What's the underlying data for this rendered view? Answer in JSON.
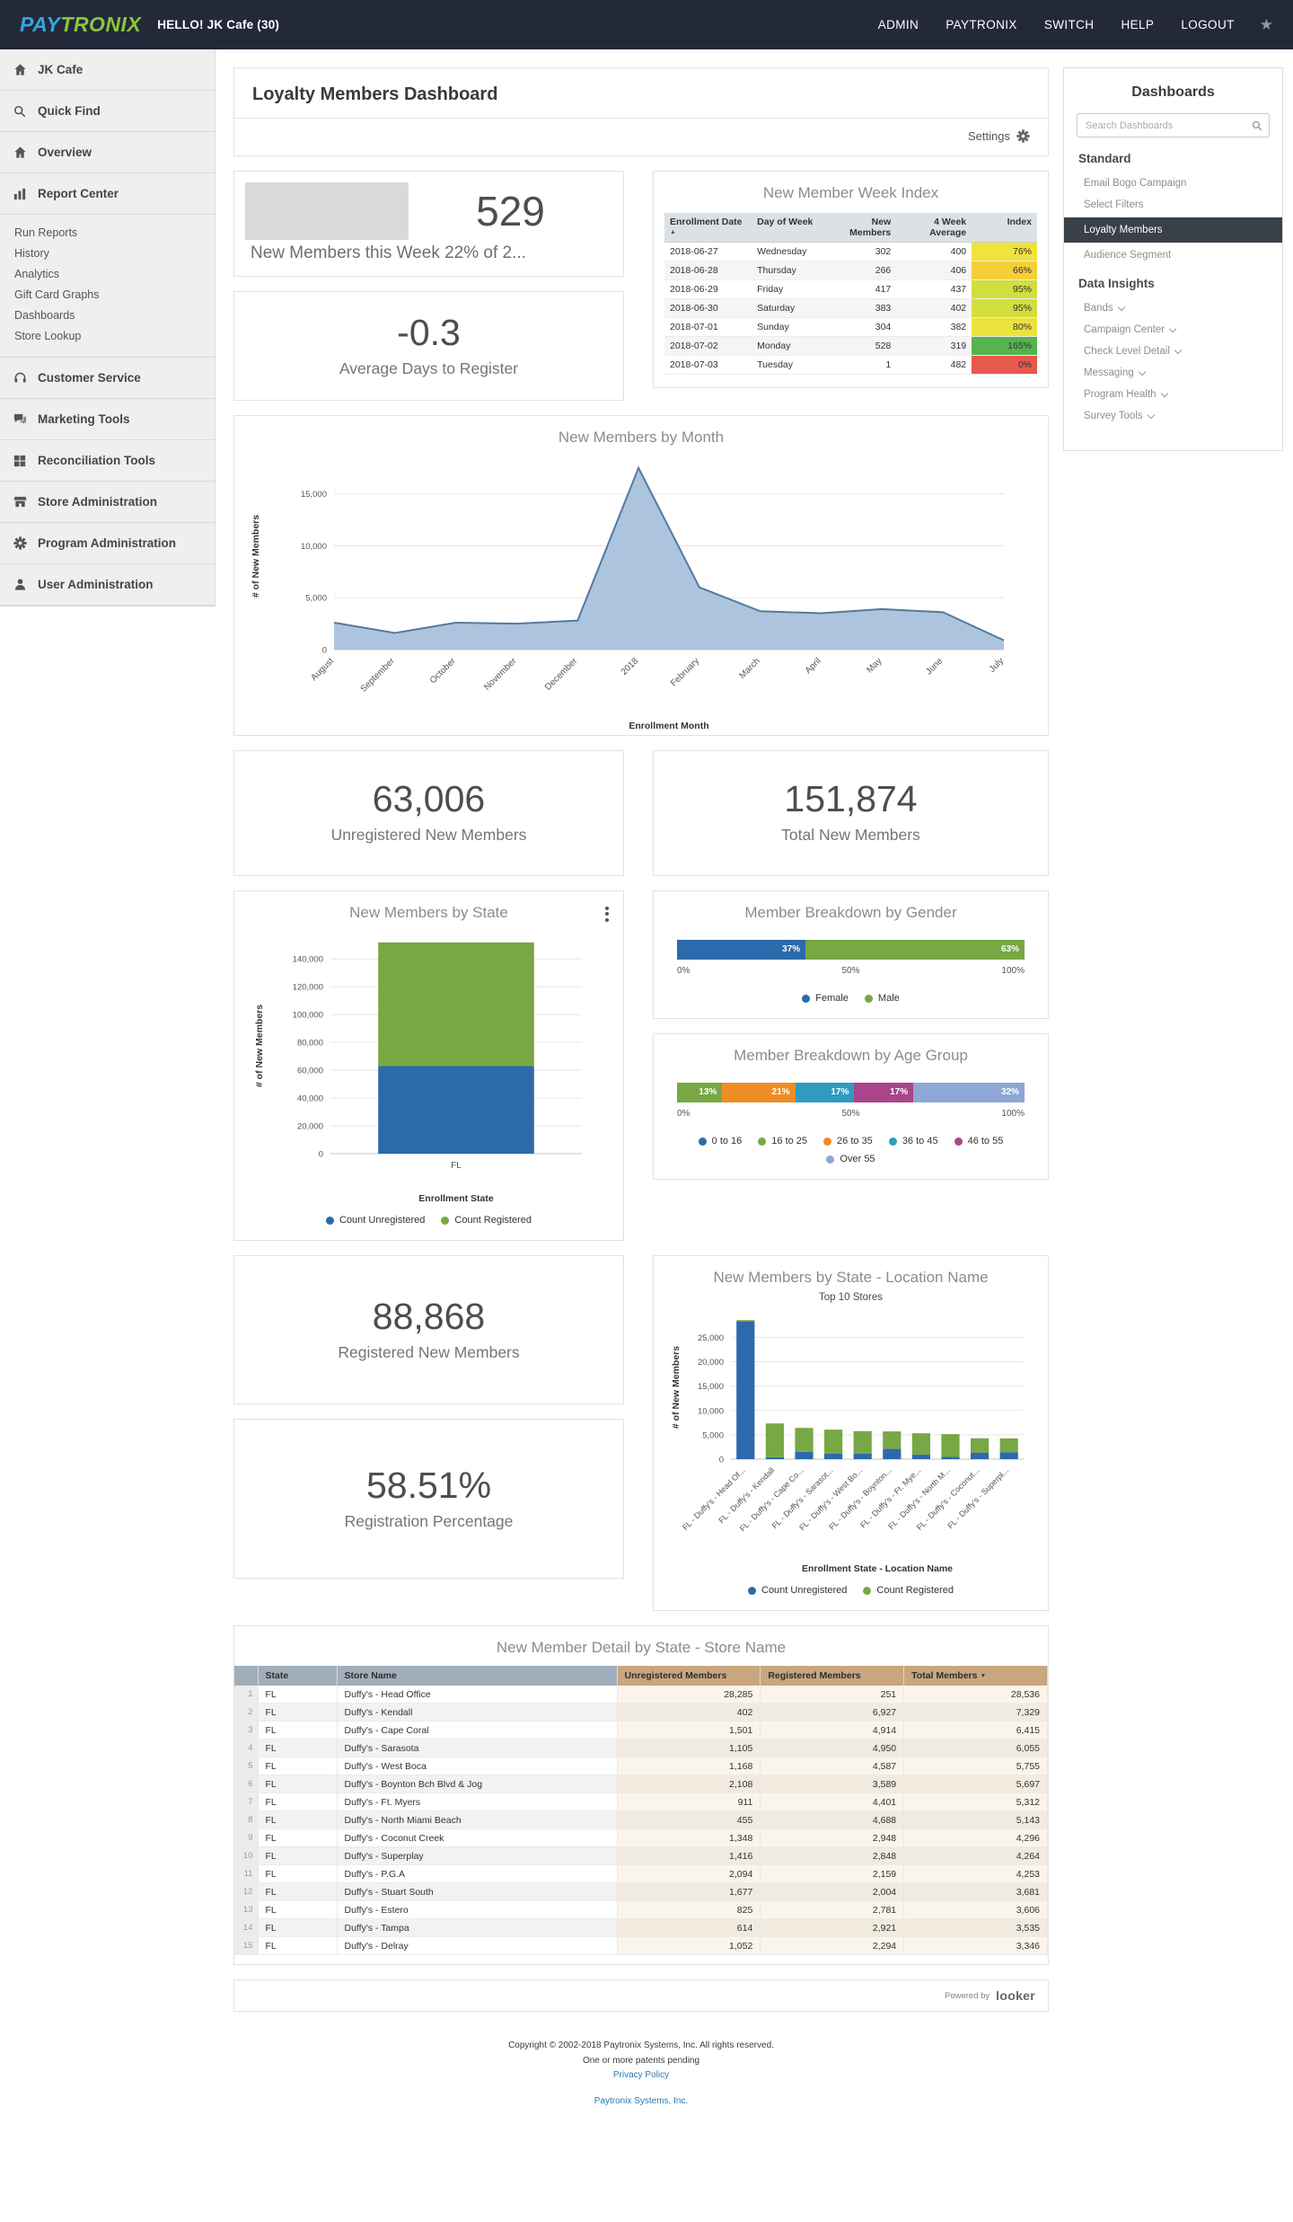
{
  "navbar": {
    "logo_pay": "PAY",
    "logo_tronix": "TRONIX",
    "greeting": "HELLO! JK Cafe (30)",
    "links": [
      "ADMIN",
      "PAYTRONIX",
      "SWITCH",
      "HELP",
      "LOGOUT"
    ]
  },
  "sidebar": {
    "items_top": [
      {
        "label": "JK Cafe",
        "icon": "home"
      },
      {
        "label": "Quick Find",
        "icon": "search"
      },
      {
        "label": "Overview",
        "icon": "home"
      },
      {
        "label": "Report Center",
        "icon": "bar-chart"
      }
    ],
    "report_center_children": [
      "Run Reports",
      "History",
      "Analytics",
      "Gift Card Graphs",
      "Dashboards",
      "Store Lookup"
    ],
    "items_bottom": [
      {
        "label": "Customer Service",
        "icon": "headset"
      },
      {
        "label": "Marketing Tools",
        "icon": "chat"
      },
      {
        "label": "Reconciliation Tools",
        "icon": "grid"
      },
      {
        "label": "Store Administration",
        "icon": "store"
      },
      {
        "label": "Program Administration",
        "icon": "gear"
      },
      {
        "label": "User Administration",
        "icon": "user"
      }
    ]
  },
  "page_header": {
    "title": "Loyalty Members Dashboard",
    "settings_label": "Settings"
  },
  "stats": {
    "new_members_week": {
      "value": "529",
      "label": "New Members this Week 22% of 2..."
    },
    "avg_days": {
      "value": "-0.3",
      "label": "Average Days to Register"
    },
    "unregistered": {
      "value": "63,006",
      "label": "Unregistered New Members"
    },
    "total": {
      "value": "151,874",
      "label": "Total New Members"
    },
    "registered": {
      "value": "88,868",
      "label": "Registered New Members"
    },
    "registration_pct": {
      "value": "58.51%",
      "label": "Registration Percentage"
    }
  },
  "week_index": {
    "title": "New Member Week Index",
    "columns": [
      "Enrollment Date",
      "Day of Week",
      "New Members",
      "4 Week Average",
      "Index"
    ],
    "rows": [
      {
        "date": "2018-06-27",
        "day": "Wednesday",
        "new_members": "302",
        "avg": "400",
        "index": "76%",
        "index_color": "#f1e33c"
      },
      {
        "date": "2018-06-28",
        "day": "Thursday",
        "new_members": "266",
        "avg": "406",
        "index": "66%",
        "index_color": "#f5ce38"
      },
      {
        "date": "2018-06-29",
        "day": "Friday",
        "new_members": "417",
        "avg": "437",
        "index": "95%",
        "index_color": "#d2de3e"
      },
      {
        "date": "2018-06-30",
        "day": "Saturday",
        "new_members": "383",
        "avg": "402",
        "index": "95%",
        "index_color": "#d2de3e"
      },
      {
        "date": "2018-07-01",
        "day": "Sunday",
        "new_members": "304",
        "avg": "382",
        "index": "80%",
        "index_color": "#ece23b"
      },
      {
        "date": "2018-07-02",
        "day": "Monday",
        "new_members": "528",
        "avg": "319",
        "index": "165%",
        "index_color": "#55b44e"
      },
      {
        "date": "2018-07-03",
        "day": "Tuesday",
        "new_members": "1",
        "avg": "482",
        "index": "0%",
        "index_color": "#e8584c"
      }
    ]
  },
  "detail_table": {
    "title": "New Member Detail by State - Store Name",
    "columns": [
      "State",
      "Store Name",
      "Unregistered Members",
      "Registered Members",
      "Total Members"
    ],
    "rows": [
      [
        "1",
        "FL",
        "Duffy's - Head Office",
        "28,285",
        "251",
        "28,536"
      ],
      [
        "2",
        "FL",
        "Duffy's - Kendall",
        "402",
        "6,927",
        "7,329"
      ],
      [
        "3",
        "FL",
        "Duffy's - Cape Coral",
        "1,501",
        "4,914",
        "6,415"
      ],
      [
        "4",
        "FL",
        "Duffy's - Sarasota",
        "1,105",
        "4,950",
        "6,055"
      ],
      [
        "5",
        "FL",
        "Duffy's - West Boca",
        "1,168",
        "4,587",
        "5,755"
      ],
      [
        "6",
        "FL",
        "Duffy's - Boynton Bch Blvd & Jog",
        "2,108",
        "3,589",
        "5,697"
      ],
      [
        "7",
        "FL",
        "Duffy's - Ft. Myers",
        "911",
        "4,401",
        "5,312"
      ],
      [
        "8",
        "FL",
        "Duffy's - North Miami Beach",
        "455",
        "4,688",
        "5,143"
      ],
      [
        "9",
        "FL",
        "Duffy's - Coconut Creek",
        "1,348",
        "2,948",
        "4,296"
      ],
      [
        "10",
        "FL",
        "Duffy's - Superplay",
        "1,416",
        "2,848",
        "4,264"
      ],
      [
        "11",
        "FL",
        "Duffy's - P.G.A",
        "2,094",
        "2,159",
        "4,253"
      ],
      [
        "12",
        "FL",
        "Duffy's - Stuart South",
        "1,677",
        "2,004",
        "3,681"
      ],
      [
        "13",
        "FL",
        "Duffy's - Estero",
        "825",
        "2,781",
        "3,606"
      ],
      [
        "14",
        "FL",
        "Duffy's - Tampa",
        "614",
        "2,921",
        "3,535"
      ],
      [
        "15",
        "FL",
        "Duffy's - Delray",
        "1,052",
        "2,294",
        "3,346"
      ]
    ]
  },
  "dashboards_panel": {
    "title": "Dashboards",
    "search_placeholder": "Search Dashboards",
    "standard_heading": "Standard",
    "standard_items": [
      "Email Bogo Campaign",
      "Select Filters",
      "Loyalty Members",
      "Audience Segment"
    ],
    "active_item": "Loyalty Members",
    "insights_heading": "Data Insights",
    "insights_items": [
      "Bands",
      "Campaign Center",
      "Check Level Detail",
      "Messaging",
      "Program Health",
      "Survey Tools"
    ]
  },
  "powered": {
    "prefix": "Powered by",
    "brand": "looker"
  },
  "footer": {
    "copyright": "Copyright © 2002-2018 Paytronix Systems, Inc. All rights reserved.",
    "patents": "One or more patents pending",
    "privacy_link": "Privacy Policy",
    "company_link": "Paytronix Systems, Inc."
  },
  "chart_data": [
    {
      "id": "members_by_month",
      "type": "area",
      "title": "New Members by Month",
      "xlabel": "Enrollment Month",
      "ylabel": "# of New Members",
      "x": [
        "August",
        "September",
        "October",
        "November",
        "December",
        "2018",
        "February",
        "March",
        "April",
        "May",
        "June",
        "July"
      ],
      "values": [
        2600,
        1600,
        2600,
        2500,
        2800,
        17500,
        6000,
        3700,
        3500,
        3900,
        3600,
        900
      ],
      "ylim": [
        0,
        18000
      ],
      "yticks": [
        0,
        5000,
        10000,
        15000
      ],
      "line_color": "#55799f",
      "fill_color": "#a9c1dc"
    },
    {
      "id": "members_by_state",
      "type": "stacked-column",
      "title": "New Members by State",
      "xlabel": "Enrollment State",
      "ylabel": "# of New Members",
      "categories": [
        "FL"
      ],
      "series": [
        {
          "name": "Count Unregistered",
          "color": "#2d6aab",
          "values": [
            63006
          ]
        },
        {
          "name": "Count Registered",
          "color": "#77a844",
          "values": [
            88868
          ]
        }
      ],
      "ylim": [
        0,
        155000
      ],
      "yticks": [
        0,
        20000,
        40000,
        60000,
        80000,
        100000,
        120000,
        140000
      ]
    },
    {
      "id": "gender_breakdown",
      "type": "pct-bar",
      "title": "Member Breakdown by Gender",
      "segments": [
        {
          "label": "Female",
          "pct": 37,
          "color": "#2d6aab"
        },
        {
          "label": "Male",
          "pct": 63,
          "color": "#77a844"
        }
      ],
      "ticks": [
        "0%",
        "50%",
        "100%"
      ]
    },
    {
      "id": "age_breakdown",
      "type": "pct-bar",
      "title": "Member Breakdown by Age Group",
      "segments": [
        {
          "label": "0 to 16",
          "pct": 0,
          "color": "#2d6aab"
        },
        {
          "label": "16 to 25",
          "pct": 13,
          "color": "#77a844"
        },
        {
          "label": "26 to 35",
          "pct": 21,
          "color": "#ef8d24"
        },
        {
          "label": "36 to 45",
          "pct": 17,
          "color": "#2f9bc1"
        },
        {
          "label": "46 to 55",
          "pct": 17,
          "color": "#a9458a"
        },
        {
          "label": "Over 55",
          "pct": 32,
          "color": "#8fa7d4"
        }
      ],
      "ticks": [
        "0%",
        "50%",
        "100%"
      ]
    },
    {
      "id": "state_location",
      "type": "stacked-column",
      "title": "New Members by State - Location Name",
      "subtitle": "Top 10 Stores",
      "xlabel": "Enrollment State - Location Name",
      "ylabel": "# of New Members",
      "categories": [
        "FL - Duffy's - Head Of...",
        "FL - Duffy's - Kendall",
        "FL - Duffy's - Cape Co...",
        "FL - Duffy's - Sarasot...",
        "FL - Duffy's - West Bo...",
        "FL - Duffy's - Boynton...",
        "FL - Duffy's - Ft. Mye...",
        "FL - Duffy's - North M...",
        "FL - Duffy's - Coconut...",
        "FL - Duffy's - Superpl..."
      ],
      "series": [
        {
          "name": "Count Unregistered",
          "color": "#2d6aab",
          "values": [
            28285,
            402,
            1501,
            1105,
            1168,
            2108,
            911,
            455,
            1348,
            1416
          ]
        },
        {
          "name": "Count Registered",
          "color": "#77a844",
          "values": [
            251,
            6927,
            4914,
            4950,
            4587,
            3589,
            4401,
            4688,
            2948,
            2848
          ]
        }
      ],
      "ylim": [
        0,
        29500
      ],
      "yticks": [
        0,
        5000,
        10000,
        15000,
        20000,
        25000
      ]
    }
  ]
}
